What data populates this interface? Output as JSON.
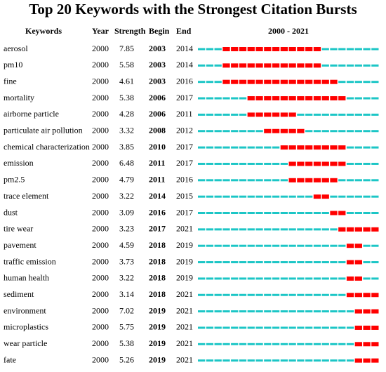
{
  "table": {
    "title": "Top 20 Keywords with the Strongest Citation Bursts",
    "header": [
      "Keywords",
      "Year",
      "Strength",
      "Begin",
      "End",
      "2000 - 2021"
    ],
    "timeline": {
      "start": 2000,
      "end": 2021,
      "base_color": "#1cc6c6",
      "burst_color": "#ff0000"
    },
    "rows": [
      [
        "aerosol",
        2000,
        7.85,
        2003,
        2014
      ],
      [
        "pm10",
        2000,
        5.58,
        2003,
        2014
      ],
      [
        "fine",
        2000,
        4.61,
        2003,
        2016
      ],
      [
        "mortality",
        2000,
        5.38,
        2006,
        2017
      ],
      [
        "airborne particle",
        2000,
        4.28,
        2006,
        2011
      ],
      [
        "particulate air pollution",
        2000,
        3.32,
        2008,
        2012
      ],
      [
        "chemical characterization",
        2000,
        3.85,
        2010,
        2017
      ],
      [
        "emission",
        2000,
        6.48,
        2011,
        2017
      ],
      [
        "pm2.5",
        2000,
        4.79,
        2011,
        2016
      ],
      [
        "trace element",
        2000,
        3.22,
        2014,
        2015
      ],
      [
        "dust",
        2000,
        3.09,
        2016,
        2017
      ],
      [
        "tire wear",
        2000,
        3.23,
        2017,
        2021
      ],
      [
        "pavement",
        2000,
        4.59,
        2018,
        2019
      ],
      [
        "traffic emission",
        2000,
        3.73,
        2018,
        2019
      ],
      [
        "human health",
        2000,
        3.22,
        2018,
        2019
      ],
      [
        "sediment",
        2000,
        3.14,
        2018,
        2021
      ],
      [
        "environment",
        2000,
        7.02,
        2019,
        2021
      ],
      [
        "microplastics",
        2000,
        5.75,
        2019,
        2021
      ],
      [
        "wear particle",
        2000,
        5.38,
        2019,
        2021
      ],
      [
        "fate",
        2000,
        5.26,
        2019,
        2021
      ]
    ]
  }
}
